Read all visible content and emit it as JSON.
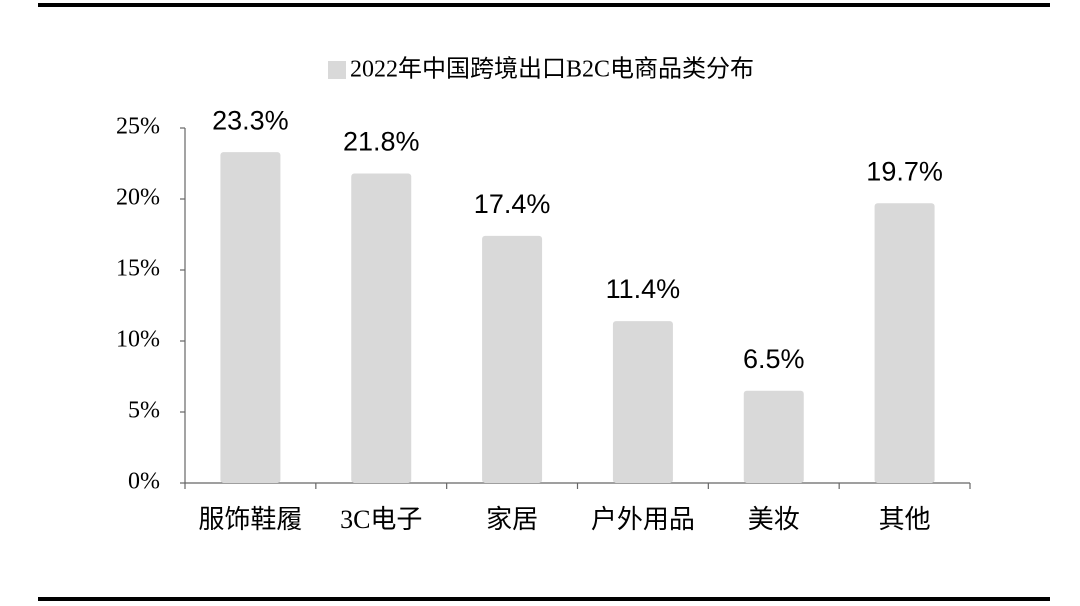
{
  "chart_data": {
    "type": "bar",
    "categories": [
      "服饰鞋履",
      "3C电子",
      "家居",
      "户外用品",
      "美妆",
      "其他"
    ],
    "series": [
      {
        "name": "2022年中国跨境出口B2C电商品类分布",
        "color": "#d9d9d9",
        "values": [
          23.3,
          21.8,
          17.4,
          11.4,
          6.5,
          19.7
        ],
        "value_labels": [
          "23.3%",
          "21.8%",
          "17.4%",
          "11.4%",
          "6.5%",
          "19.7%"
        ]
      }
    ],
    "ylim": [
      0,
      25
    ],
    "yticks": [
      {
        "value": 0,
        "label": "0%"
      },
      {
        "value": 5,
        "label": "5%"
      },
      {
        "value": 10,
        "label": "10%"
      },
      {
        "value": 15,
        "label": "15%"
      },
      {
        "value": 20,
        "label": "20%"
      },
      {
        "value": 25,
        "label": "25%"
      }
    ],
    "grid": false,
    "legend": "top"
  }
}
